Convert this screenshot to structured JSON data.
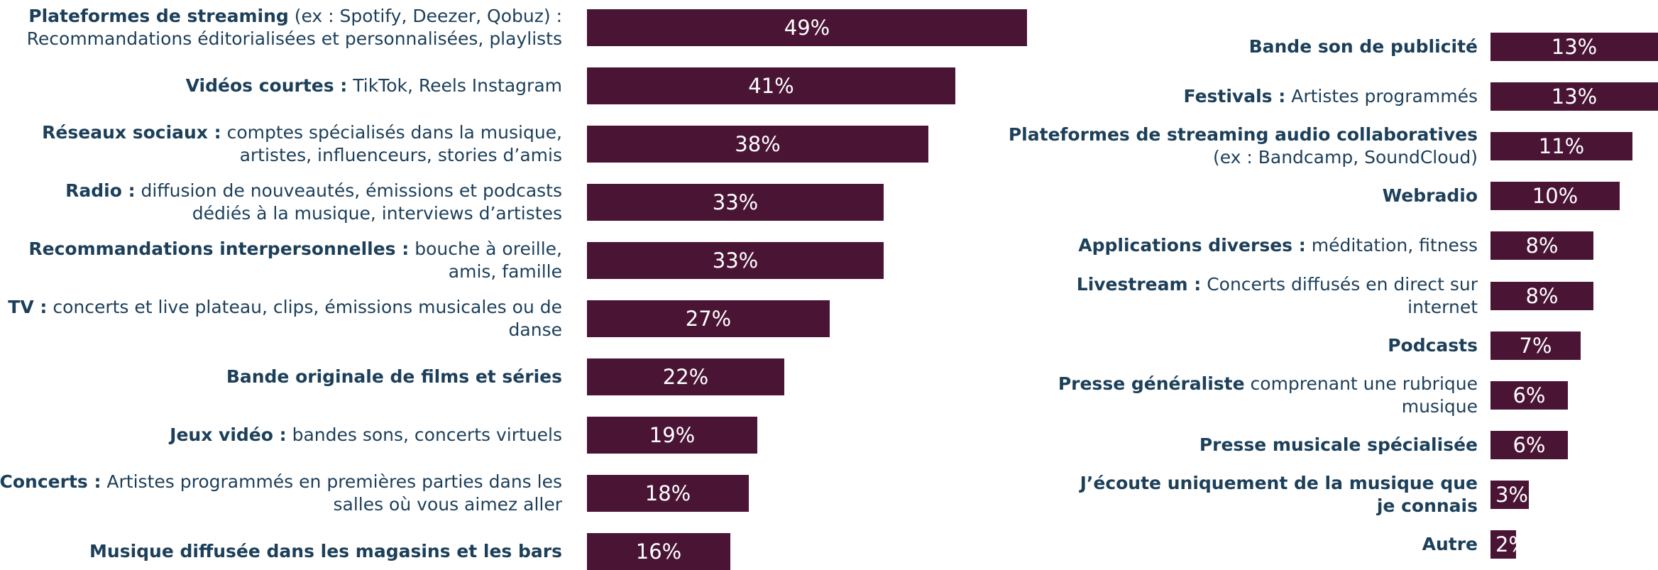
{
  "colors": {
    "bar": "#4a1535",
    "label": "#1c3f5a",
    "value_text": "#ffffff"
  },
  "chart_data": [
    {
      "type": "bar",
      "orientation": "horizontal",
      "xlim": [
        0,
        49
      ],
      "grid": false,
      "categories": [
        "Plateformes de streaming (ex : Spotify, Deezer, Qobuz) : Recommandations éditorialisées et personnalisées, playlists",
        "Vidéos courtes : TikTok, Reels Instagram",
        "Réseaux sociaux : comptes spécialisés dans la musique, artistes, influenceurs, stories d’amis",
        "Radio : diffusion de nouveautés, émissions et podcasts dédiés à la musique, interviews d’artistes",
        "Recommandations interpersonnelles : bouche à oreille, amis, famille",
        "TV : concerts et live plateau, clips, émissions musicales ou de danse",
        "Bande originale de films et séries",
        "Jeux vidéo : bandes sons, concerts virtuels",
        "Concerts : Artistes programmés en premières parties dans les salles où vous aimez aller",
        "Musique diffusée dans les magasins et les bars"
      ],
      "label_lines": [
        [
          [
            {
              "t": "Plateformes de streaming",
              "b": true
            },
            {
              "t": " (ex : Spotify, Deezer, Qobuz) :",
              "b": false
            }
          ],
          [
            {
              "t": "Recommandations éditorialisées et personnalisées, playlists",
              "b": false
            }
          ]
        ],
        [
          [
            {
              "t": "Vidéos courtes :",
              "b": true
            },
            {
              "t": " TikTok, Reels Instagram",
              "b": false
            }
          ]
        ],
        [
          [
            {
              "t": "Réseaux sociaux :",
              "b": true
            },
            {
              "t": " comptes spécialisés dans la musique,",
              "b": false
            }
          ],
          [
            {
              "t": "artistes, influenceurs, stories d’amis",
              "b": false
            }
          ]
        ],
        [
          [
            {
              "t": "Radio :",
              "b": true
            },
            {
              "t": " diffusion de nouveautés, émissions et podcasts",
              "b": false
            }
          ],
          [
            {
              "t": "dédiés à la musique, interviews d’artistes",
              "b": false
            }
          ]
        ],
        [
          [
            {
              "t": "Recommandations interpersonnelles :",
              "b": true
            },
            {
              "t": " bouche à oreille,",
              "b": false
            }
          ],
          [
            {
              "t": "amis, famille",
              "b": false
            }
          ]
        ],
        [
          [
            {
              "t": "TV :",
              "b": true
            },
            {
              "t": " concerts et live plateau, clips, émissions musicales ou de",
              "b": false
            }
          ],
          [
            {
              "t": "danse",
              "b": false
            }
          ]
        ],
        [
          [
            {
              "t": "Bande originale de films et séries",
              "b": true
            }
          ]
        ],
        [
          [
            {
              "t": "Jeux vidéo :",
              "b": true
            },
            {
              "t": " bandes sons, concerts virtuels",
              "b": false
            }
          ]
        ],
        [
          [
            {
              "t": "Concerts :",
              "b": true
            },
            {
              "t": " Artistes programmés en premières parties dans les",
              "b": false
            }
          ],
          [
            {
              "t": "salles où vous aimez aller",
              "b": false
            }
          ]
        ],
        [
          [
            {
              "t": "Musique diffusée dans les magasins et les bars",
              "b": true
            }
          ]
        ]
      ],
      "values": [
        49,
        41,
        38,
        33,
        33,
        27,
        22,
        19,
        18,
        16
      ],
      "value_labels": [
        "49%",
        "41%",
        "38%",
        "33%",
        "33%",
        "27%",
        "22%",
        "19%",
        "18%",
        "16%"
      ]
    },
    {
      "type": "bar",
      "orientation": "horizontal",
      "xlim": [
        0,
        13
      ],
      "grid": false,
      "categories": [
        "Bande son de publicité",
        "Festivals : Artistes programmés",
        "Plateformes de streaming audio collaboratives (ex : Bandcamp, SoundCloud)",
        "Webradio",
        "Applications diverses : méditation, fitness",
        "Livestream : Concerts diffusés en direct sur internet",
        "Podcasts",
        "Presse généraliste comprenant une rubrique musique",
        "Presse musicale spécialisée",
        "J’écoute uniquement de la musique que je connais",
        "Autre"
      ],
      "label_lines": [
        [
          [
            {
              "t": "Bande son de publicité",
              "b": true
            }
          ]
        ],
        [
          [
            {
              "t": "Festivals :",
              "b": true
            },
            {
              "t": " Artistes programmés",
              "b": false
            }
          ]
        ],
        [
          [
            {
              "t": "Plateformes de streaming audio collaboratives",
              "b": true
            }
          ],
          [
            {
              "t": "(ex : Bandcamp, SoundCloud)",
              "b": false
            }
          ]
        ],
        [
          [
            {
              "t": "Webradio",
              "b": true
            }
          ]
        ],
        [
          [
            {
              "t": "Applications diverses :",
              "b": true
            },
            {
              "t": " méditation, fitness",
              "b": false
            }
          ]
        ],
        [
          [
            {
              "t": "Livestream :",
              "b": true
            },
            {
              "t": " Concerts diffusés en direct sur",
              "b": false
            }
          ],
          [
            {
              "t": "internet",
              "b": false
            }
          ]
        ],
        [
          [
            {
              "t": "Podcasts",
              "b": true
            }
          ]
        ],
        [
          [
            {
              "t": "Presse généraliste",
              "b": true
            },
            {
              "t": " comprenant une rubrique",
              "b": false
            }
          ],
          [
            {
              "t": "musique",
              "b": false
            }
          ]
        ],
        [
          [
            {
              "t": "Presse musicale spécialisée",
              "b": true
            }
          ]
        ],
        [
          [
            {
              "t": "J’écoute uniquement de la musique que",
              "b": true
            }
          ],
          [
            {
              "t": "je connais",
              "b": true
            }
          ]
        ],
        [
          [
            {
              "t": "Autre",
              "b": true
            }
          ]
        ]
      ],
      "values": [
        13,
        13,
        11,
        10,
        8,
        8,
        7,
        6,
        6,
        3,
        2
      ],
      "value_labels": [
        "13%",
        "13%",
        "11%",
        "10%",
        "8%",
        "8%",
        "7%",
        "6%",
        "6%",
        "3%",
        "2%"
      ]
    }
  ]
}
